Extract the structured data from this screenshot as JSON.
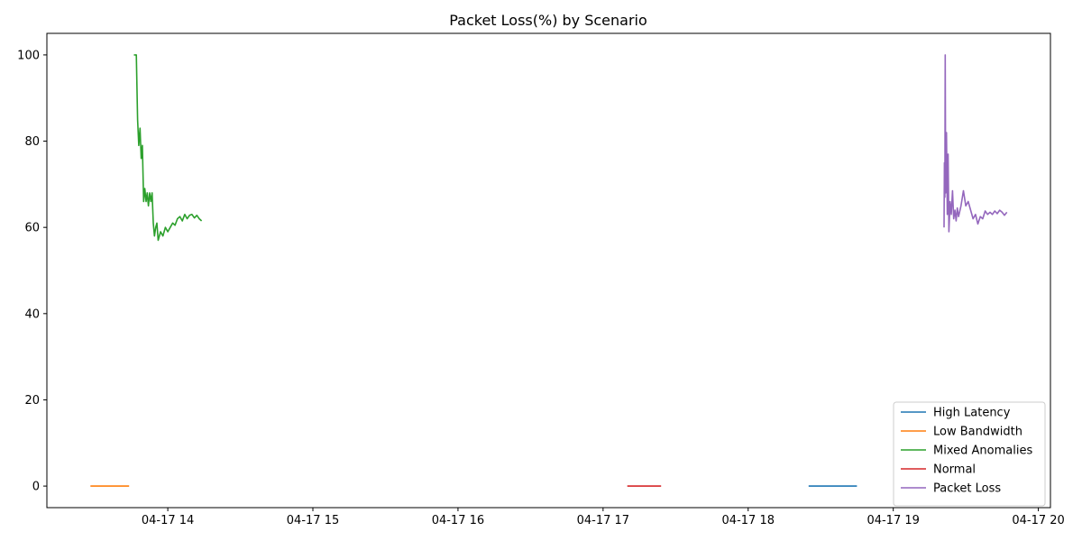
{
  "chart_data": {
    "type": "line",
    "title": "Packet Loss(%) by Scenario",
    "xlabel": "",
    "ylabel": "",
    "x_axis_type": "datetime",
    "xlim": [
      "2024-04-17T13:10:00",
      "2024-04-17T20:05:00"
    ],
    "ylim": [
      -5,
      105
    ],
    "x_ticks": [
      {
        "value": "2024-04-17T14:00:00",
        "label": "04-17 14"
      },
      {
        "value": "2024-04-17T15:00:00",
        "label": "04-17 15"
      },
      {
        "value": "2024-04-17T16:00:00",
        "label": "04-17 16"
      },
      {
        "value": "2024-04-17T17:00:00",
        "label": "04-17 17"
      },
      {
        "value": "2024-04-17T18:00:00",
        "label": "04-17 18"
      },
      {
        "value": "2024-04-17T19:00:00",
        "label": "04-17 19"
      },
      {
        "value": "2024-04-17T20:00:00",
        "label": "04-17 20"
      }
    ],
    "y_ticks": [
      0,
      20,
      40,
      60,
      80,
      100
    ],
    "grid": false,
    "legend_position": "lower right",
    "series": [
      {
        "name": "High Latency",
        "color": "#1f77b4",
        "points": [
          [
            "2024-04-17T18:25:00",
            0
          ],
          [
            "2024-04-17T18:45:00",
            0
          ]
        ]
      },
      {
        "name": "Low Bandwidth",
        "color": "#ff7f0e",
        "points": [
          [
            "2024-04-17T13:28:00",
            0
          ],
          [
            "2024-04-17T13:44:00",
            0
          ]
        ]
      },
      {
        "name": "Mixed Anomalies",
        "color": "#2ca02c",
        "points": [
          [
            "2024-04-17T13:46:00",
            100
          ],
          [
            "2024-04-17T13:47:00",
            100
          ],
          [
            "2024-04-17T13:47:30",
            85
          ],
          [
            "2024-04-17T13:48:00",
            79
          ],
          [
            "2024-04-17T13:48:30",
            83
          ],
          [
            "2024-04-17T13:49:00",
            76
          ],
          [
            "2024-04-17T13:49:30",
            79
          ],
          [
            "2024-04-17T13:50:00",
            66
          ],
          [
            "2024-04-17T13:50:30",
            69
          ],
          [
            "2024-04-17T13:51:00",
            66
          ],
          [
            "2024-04-17T13:51:30",
            68
          ],
          [
            "2024-04-17T13:52:00",
            65
          ],
          [
            "2024-04-17T13:52:30",
            68
          ],
          [
            "2024-04-17T13:53:00",
            66
          ],
          [
            "2024-04-17T13:53:30",
            68
          ],
          [
            "2024-04-17T13:54:00",
            61
          ],
          [
            "2024-04-17T13:54:30",
            58
          ],
          [
            "2024-04-17T13:55:00",
            60
          ],
          [
            "2024-04-17T13:55:30",
            61
          ],
          [
            "2024-04-17T13:56:00",
            57
          ],
          [
            "2024-04-17T13:57:00",
            59
          ],
          [
            "2024-04-17T13:58:00",
            58
          ],
          [
            "2024-04-17T13:59:00",
            60
          ],
          [
            "2024-04-17T14:00:00",
            59
          ],
          [
            "2024-04-17T14:01:00",
            60
          ],
          [
            "2024-04-17T14:02:00",
            61
          ],
          [
            "2024-04-17T14:03:00",
            60.5
          ],
          [
            "2024-04-17T14:04:00",
            62
          ],
          [
            "2024-04-17T14:05:00",
            62.5
          ],
          [
            "2024-04-17T14:06:00",
            61.5
          ],
          [
            "2024-04-17T14:07:00",
            63
          ],
          [
            "2024-04-17T14:08:00",
            62
          ],
          [
            "2024-04-17T14:09:00",
            62.8
          ],
          [
            "2024-04-17T14:10:00",
            63
          ],
          [
            "2024-04-17T14:11:00",
            62.2
          ],
          [
            "2024-04-17T14:12:00",
            62.8
          ],
          [
            "2024-04-17T14:13:00",
            62
          ],
          [
            "2024-04-17T14:14:00",
            61.5
          ]
        ]
      },
      {
        "name": "Normal",
        "color": "#d62728",
        "points": [
          [
            "2024-04-17T17:10:00",
            0
          ],
          [
            "2024-04-17T17:24:00",
            0
          ]
        ]
      },
      {
        "name": "Packet Loss",
        "color": "#9467bd",
        "points": [
          [
            "2024-04-17T19:21:00",
            60
          ],
          [
            "2024-04-17T19:21:10",
            75
          ],
          [
            "2024-04-17T19:21:20",
            67
          ],
          [
            "2024-04-17T19:21:30",
            100
          ],
          [
            "2024-04-17T19:21:40",
            68
          ],
          [
            "2024-04-17T19:22:00",
            82
          ],
          [
            "2024-04-17T19:22:20",
            63
          ],
          [
            "2024-04-17T19:22:40",
            77
          ],
          [
            "2024-04-17T19:23:00",
            59
          ],
          [
            "2024-04-17T19:23:30",
            66
          ],
          [
            "2024-04-17T19:24:00",
            63
          ],
          [
            "2024-04-17T19:24:30",
            68.5
          ],
          [
            "2024-04-17T19:25:00",
            62
          ],
          [
            "2024-04-17T19:25:30",
            64
          ],
          [
            "2024-04-17T19:26:00",
            61.5
          ],
          [
            "2024-04-17T19:26:30",
            64.5
          ],
          [
            "2024-04-17T19:27:00",
            62.5
          ],
          [
            "2024-04-17T19:28:00",
            65
          ],
          [
            "2024-04-17T19:29:00",
            68.5
          ],
          [
            "2024-04-17T19:30:00",
            65
          ],
          [
            "2024-04-17T19:31:00",
            66
          ],
          [
            "2024-04-17T19:32:00",
            64
          ],
          [
            "2024-04-17T19:33:00",
            62
          ],
          [
            "2024-04-17T19:34:00",
            63
          ],
          [
            "2024-04-17T19:35:00",
            60.8
          ],
          [
            "2024-04-17T19:36:00",
            62.5
          ],
          [
            "2024-04-17T19:37:00",
            62
          ],
          [
            "2024-04-17T19:38:00",
            63.8
          ],
          [
            "2024-04-17T19:39:00",
            63
          ],
          [
            "2024-04-17T19:40:00",
            63.5
          ],
          [
            "2024-04-17T19:41:00",
            63
          ],
          [
            "2024-04-17T19:42:00",
            63.8
          ],
          [
            "2024-04-17T19:43:00",
            63.2
          ],
          [
            "2024-04-17T19:44:00",
            64
          ],
          [
            "2024-04-17T19:45:00",
            63.5
          ],
          [
            "2024-04-17T19:46:00",
            62.8
          ],
          [
            "2024-04-17T19:47:00",
            63.5
          ]
        ]
      }
    ]
  }
}
